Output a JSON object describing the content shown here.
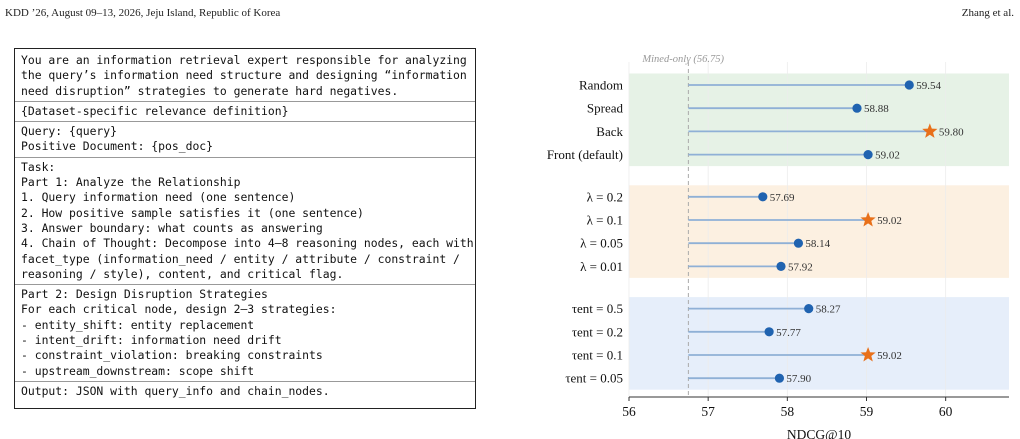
{
  "header": {
    "left": "KDD ’26, August 09–13, 2026, Jeju Island, Republic of Korea",
    "right": "Zhang et al."
  },
  "prompt": {
    "sections": [
      [
        "You are an information retrieval expert responsible for analyzing",
        "the query’s information need structure and designing “information",
        "need disruption” strategies to generate hard negatives."
      ],
      [
        "{Dataset-specific relevance definition}"
      ],
      [
        "Query: {query}",
        "Positive Document: {pos_doc}"
      ],
      [
        "Task:",
        "Part 1: Analyze the Relationship",
        "1. Query information need (one sentence)",
        "2. How positive sample satisfies it (one sentence)",
        "3. Answer boundary: what counts as answering",
        "4. Chain of Thought: Decompose into 4–8 reasoning nodes, each with",
        "facet_type (information_need / entity / attribute / constraint /",
        "reasoning / style), content, and critical flag."
      ],
      [
        "Part 2: Design Disruption Strategies",
        "For each critical node, design 2–3 strategies:",
        "- entity_shift: entity replacement",
        "- intent_drift: information need drift",
        "- constraint_violation: breaking constraints",
        "- upstream_downstream: scope shift"
      ],
      [
        "Output: JSON with query_info and chain_nodes."
      ]
    ]
  },
  "chart_data": {
    "type": "lollipop",
    "xlabel": "NDCG@10",
    "xlim": [
      56,
      60.8
    ],
    "xticks": [
      56,
      57,
      58,
      59,
      60
    ],
    "baseline": {
      "label": "Mined-only (56.75)",
      "value": 56.75
    },
    "groups": [
      {
        "color": "#e6f2e6",
        "rows": [
          {
            "label": "Random",
            "value": 59.54,
            "star": false
          },
          {
            "label": "Spread",
            "value": 58.88,
            "star": false
          },
          {
            "label": "Back",
            "value": 59.8,
            "star": true
          },
          {
            "label": "Front (default)",
            "value": 59.02,
            "star": false
          }
        ]
      },
      {
        "color": "#fcf0e1",
        "rows": [
          {
            "label": "λ = 0.2",
            "value": 57.69,
            "star": false
          },
          {
            "label": "λ = 0.1",
            "value": 59.02,
            "star": true
          },
          {
            "label": "λ = 0.05",
            "value": 58.14,
            "star": false
          },
          {
            "label": "λ = 0.01",
            "value": 57.92,
            "star": false
          }
        ]
      },
      {
        "color": "#e6eefa",
        "rows": [
          {
            "label": "τent = 0.5",
            "value": 58.27,
            "star": false
          },
          {
            "label": "τent = 0.2",
            "value": 57.77,
            "star": false
          },
          {
            "label": "τent = 0.1",
            "value": 59.02,
            "star": true
          },
          {
            "label": "τent = 0.05",
            "value": 57.9,
            "star": false
          }
        ]
      }
    ],
    "colors": {
      "dot": "#2063b0",
      "stem": "#8fb0d6",
      "star": "#e8701a",
      "baseline": "#aaaaaa"
    }
  }
}
